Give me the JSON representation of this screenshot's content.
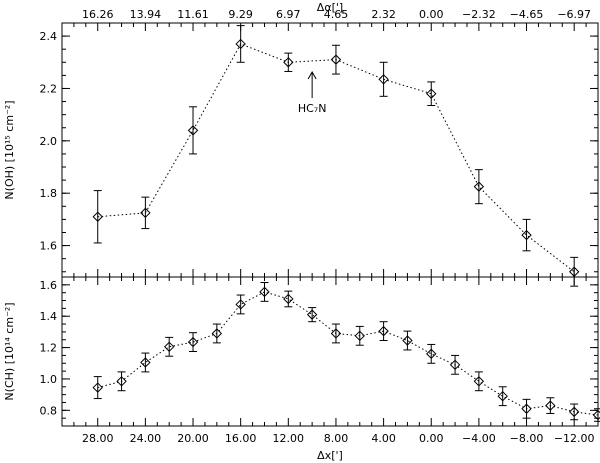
{
  "chart_data": [
    {
      "type": "line",
      "panel": "top",
      "x_axis_label": "Δx[']",
      "top_axis_label": "Δα[']",
      "top_axis_ticks": [
        "16.26",
        "13.94",
        "11.61",
        "9.29",
        "6.97",
        "4.65",
        "2.32",
        "0.00",
        "−2.32",
        "−4.65",
        "−6.97"
      ],
      "ylabel": "N(OH) [10¹⁵ cm⁻²]",
      "ylim": [
        1.48,
        2.45
      ],
      "yticks": [
        "1.6",
        "1.8",
        "2.0",
        "2.2",
        "2.4"
      ],
      "xlim": [
        31,
        -14
      ],
      "annotation": "HC₇N",
      "points": [
        {
          "x": 28,
          "y": 1.71,
          "err": 0.1
        },
        {
          "x": 24,
          "y": 1.725,
          "err": 0.06
        },
        {
          "x": 20,
          "y": 2.04,
          "err": 0.09
        },
        {
          "x": 16,
          "y": 2.37,
          "err": 0.07
        },
        {
          "x": 12,
          "y": 2.3,
          "err": 0.035
        },
        {
          "x": 8,
          "y": 2.31,
          "err": 0.055
        },
        {
          "x": 4,
          "y": 2.235,
          "err": 0.065
        },
        {
          "x": 0,
          "y": 2.18,
          "err": 0.045
        },
        {
          "x": -4,
          "y": 1.825,
          "err": 0.065
        },
        {
          "x": -8,
          "y": 1.64,
          "err": 0.06
        },
        {
          "x": -12,
          "y": 1.5,
          "err": 0.055
        }
      ]
    },
    {
      "type": "line",
      "panel": "bottom",
      "xlabel": "Δx[']",
      "xticks": [
        "28.00",
        "24.00",
        "20.00",
        "16.00",
        "12.00",
        "8.00",
        "4.00",
        "0.00",
        "−4.00",
        "−8.00",
        "−12.00"
      ],
      "ylabel": "N(CH) [10¹⁴ cm⁻²]",
      "ylim": [
        0.7,
        1.65
      ],
      "yticks": [
        "0.8",
        "1.0",
        "1.2",
        "1.4",
        "1.6"
      ],
      "xlim": [
        31,
        -14
      ],
      "points": [
        {
          "x": 28,
          "y": 0.945,
          "err": 0.07
        },
        {
          "x": 26,
          "y": 0.985,
          "err": 0.06
        },
        {
          "x": 24,
          "y": 1.105,
          "err": 0.06
        },
        {
          "x": 22,
          "y": 1.205,
          "err": 0.06
        },
        {
          "x": 20,
          "y": 1.235,
          "err": 0.06
        },
        {
          "x": 18,
          "y": 1.29,
          "err": 0.06
        },
        {
          "x": 16,
          "y": 1.475,
          "err": 0.06
        },
        {
          "x": 14,
          "y": 1.555,
          "err": 0.06
        },
        {
          "x": 12,
          "y": 1.51,
          "err": 0.05
        },
        {
          "x": 10,
          "y": 1.41,
          "err": 0.045
        },
        {
          "x": 8,
          "y": 1.29,
          "err": 0.06
        },
        {
          "x": 6,
          "y": 1.275,
          "err": 0.06
        },
        {
          "x": 4,
          "y": 1.305,
          "err": 0.06
        },
        {
          "x": 2,
          "y": 1.245,
          "err": 0.06
        },
        {
          "x": 0,
          "y": 1.16,
          "err": 0.06
        },
        {
          "x": -2,
          "y": 1.09,
          "err": 0.06
        },
        {
          "x": -4,
          "y": 0.985,
          "err": 0.06
        },
        {
          "x": -6,
          "y": 0.89,
          "err": 0.06
        },
        {
          "x": -8,
          "y": 0.81,
          "err": 0.06
        },
        {
          "x": -10,
          "y": 0.83,
          "err": 0.05
        },
        {
          "x": -12,
          "y": 0.79,
          "err": 0.05
        },
        {
          "x": -14,
          "y": 0.77,
          "err": 0.04
        }
      ]
    }
  ]
}
